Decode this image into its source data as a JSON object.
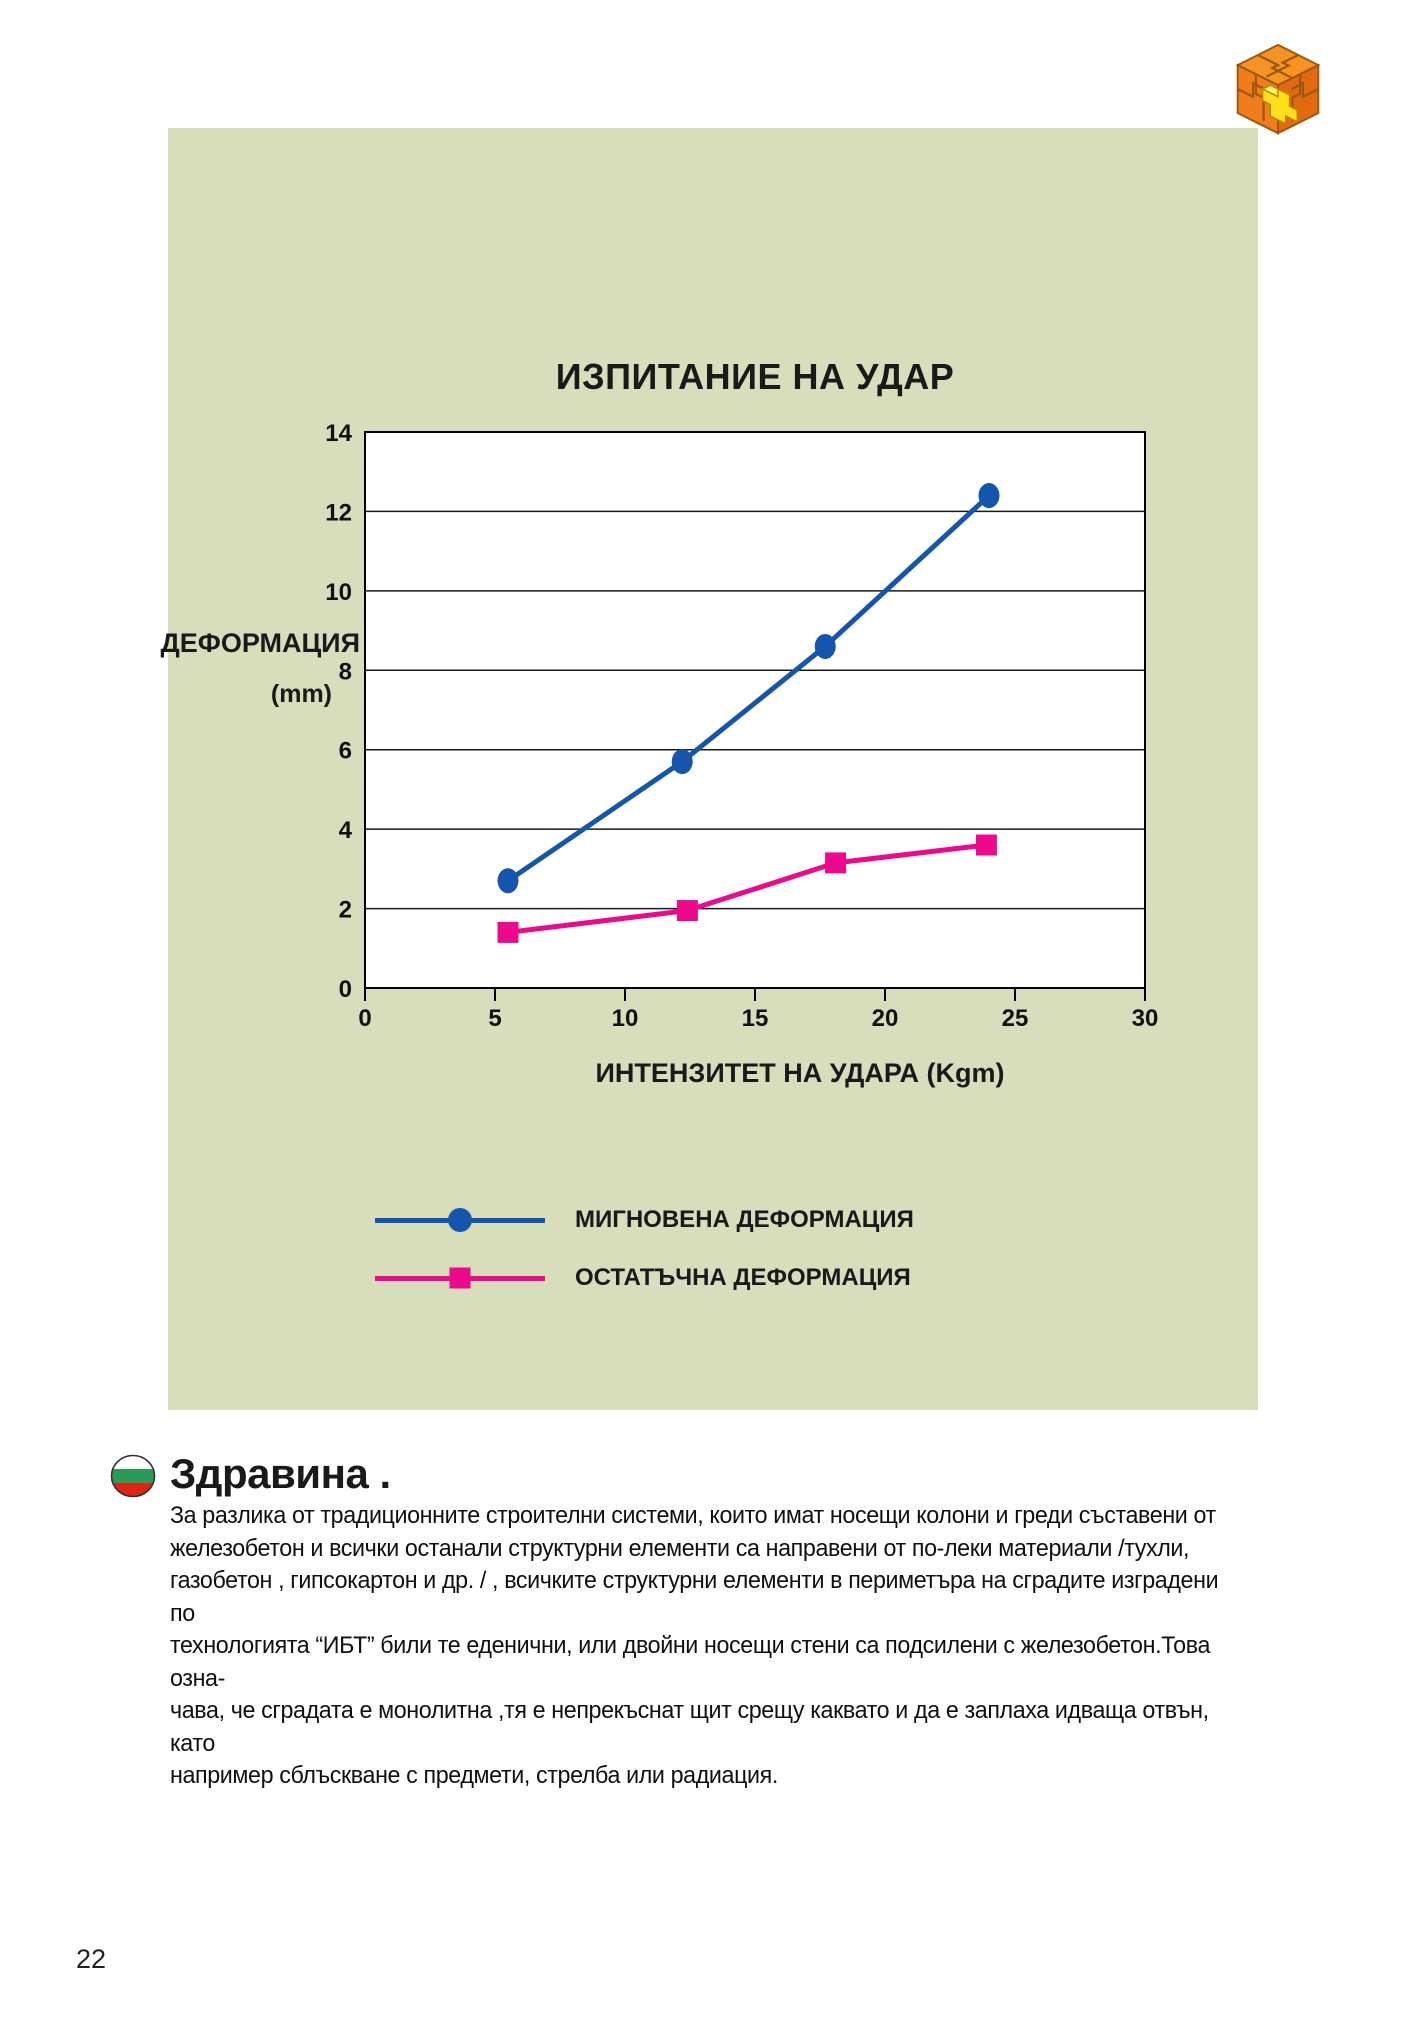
{
  "page": {
    "number": "22"
  },
  "icons": {
    "logo": "puzzle-cube-logo",
    "flag": "bulgaria-flag-icon"
  },
  "colors": {
    "panel_bg": "#d8debb",
    "series_instant_blue": "#1556ac",
    "series_residual_pink": "#eb0a8c",
    "flag_green": "#2a9a57",
    "flag_red": "#dd2415",
    "logo_orange": "#f59422",
    "logo_yellow": "#ffe01a"
  },
  "chart_data": {
    "type": "line",
    "title": "ИЗПИТАНИЕ НА УДАР",
    "xlabel": "ИНТЕНЗИТЕТ НА УДАРА (Kgm)",
    "ylabel": "ДЕФОРМАЦИЯ",
    "ylabel_unit": "(mm)",
    "xlim": [
      0,
      30
    ],
    "ylim": [
      0,
      14
    ],
    "x_ticks": [
      0,
      5,
      10,
      15,
      20,
      25,
      30
    ],
    "y_ticks": [
      0,
      2,
      4,
      6,
      8,
      10,
      12,
      14
    ],
    "grid": "horizontal gridlines every 2 units",
    "legend_position": "below chart",
    "series": [
      {
        "name": "МИГНОВЕНА ДЕФОРМАЦИЯ",
        "marker": "circle",
        "color": "#1556ac",
        "points": [
          {
            "x": 5.5,
            "y": 2.7
          },
          {
            "x": 12.2,
            "y": 5.7
          },
          {
            "x": 17.7,
            "y": 8.6
          },
          {
            "x": 24.0,
            "y": 12.4
          }
        ]
      },
      {
        "name": "ОСТАТЪЧНА ДЕФОРМАЦИЯ",
        "marker": "square",
        "color": "#eb0a8c",
        "points": [
          {
            "x": 5.5,
            "y": 1.4
          },
          {
            "x": 12.4,
            "y": 1.95
          },
          {
            "x": 18.1,
            "y": 3.15
          },
          {
            "x": 23.9,
            "y": 3.6
          }
        ]
      }
    ]
  },
  "section": {
    "heading": "Здравина .",
    "paragraph": "За разлика от традиционните строителни системи, които имат носещи колони и греди съставени от\nжелезобетон и всички останали структурни елементи са направени от по-леки материали /тухли,\nгазобетон , гипсокартон и др. / , всичките структурни елементи в периметъра на сградите изградени по\nтехнологията “ИБТ” били те еденични, или двойни носещи стени са подсилени с железобетон.Това озна-\nчава, че сградата е монолитна ,тя е непрекъснат щит срещу каквато и да е заплаха идваща отвън, като\nнапример сблъскване с предмети, стрелба или радиация."
  }
}
